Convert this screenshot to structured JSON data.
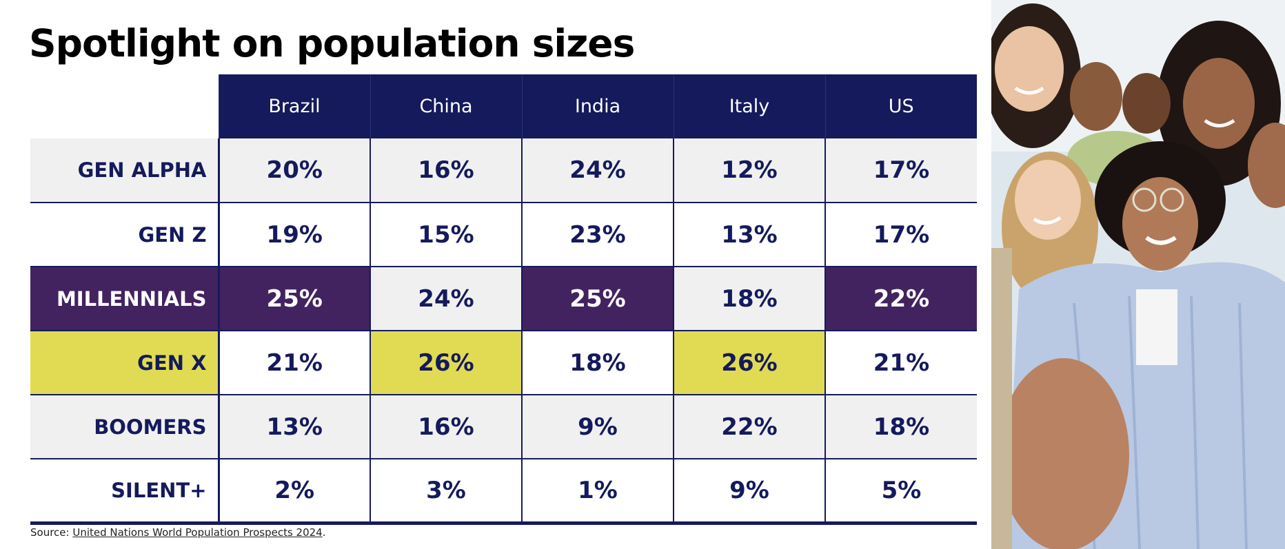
{
  "title": "Spotlight on population sizes",
  "chart_data": {
    "type": "table",
    "title": "Spotlight on population sizes",
    "columns": [
      "Brazil",
      "China",
      "India",
      "Italy",
      "US"
    ],
    "rows": [
      {
        "label": "GEN ALPHA",
        "values": [
          "20%",
          "16%",
          "24%",
          "12%",
          "17%"
        ]
      },
      {
        "label": "GEN Z",
        "values": [
          "19%",
          "15%",
          "23%",
          "13%",
          "17%"
        ]
      },
      {
        "label": "MILLENNIALS",
        "values": [
          "25%",
          "24%",
          "25%",
          "18%",
          "22%"
        ]
      },
      {
        "label": "GEN X",
        "values": [
          "21%",
          "26%",
          "18%",
          "26%",
          "21%"
        ]
      },
      {
        "label": "BOOMERS",
        "values": [
          "13%",
          "16%",
          "9%",
          "22%",
          "18%"
        ]
      },
      {
        "label": "SILENT+",
        "values": [
          "2%",
          "3%",
          "1%",
          "9%",
          "5%"
        ]
      }
    ],
    "highlights": {
      "largest_generation": "#42235f",
      "gen_x_largest": "#e1db53",
      "row_shading": "#f0f0f0",
      "header": "#141a5c"
    }
  },
  "source": {
    "prefix": "Source: ",
    "link_text": "United Nations World Population Prospects 2024",
    "suffix": "."
  },
  "colors": {
    "navy": "#141a5c",
    "purple": "#42235f",
    "yellow": "#e1db53",
    "light_gray": "#f0f0f0"
  }
}
